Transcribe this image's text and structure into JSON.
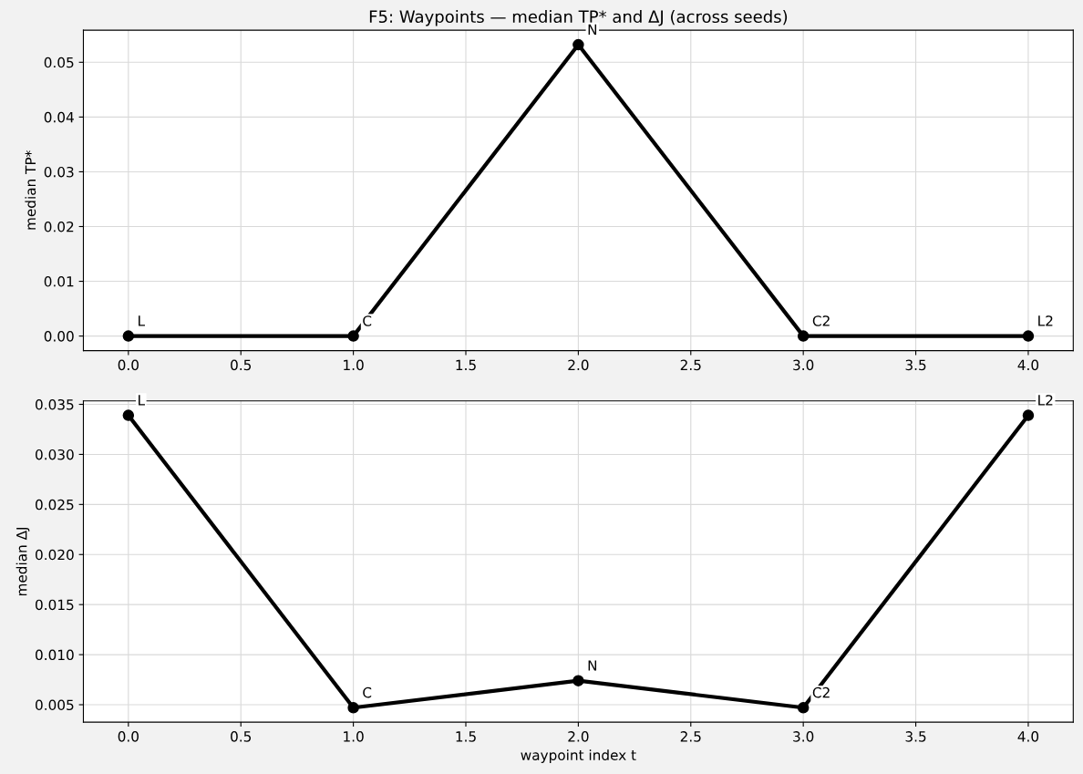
{
  "chart_data": [
    {
      "type": "line",
      "title": "F5: Waypoints — median TP* and ΔJ (across seeds)",
      "ylabel": "median TP*",
      "x": [
        0,
        1,
        2,
        3,
        4
      ],
      "series": [
        {
          "color": "#000000",
          "values": [
            0,
            0,
            0.0532,
            0,
            0
          ]
        }
      ],
      "annotations": [
        {
          "text": "L",
          "x": 0,
          "y": 0
        },
        {
          "text": "C",
          "x": 1,
          "y": 0
        },
        {
          "text": "N",
          "x": 2,
          "y": 0.0532
        },
        {
          "text": "C2",
          "x": 3,
          "y": 0
        },
        {
          "text": "L2",
          "x": 4,
          "y": 0
        }
      ],
      "xlim": [
        -0.2,
        4.2
      ],
      "xticks": [
        {
          "value": 0,
          "label": "0.0"
        },
        {
          "value": 0.5,
          "label": "0.5"
        },
        {
          "value": 1,
          "label": "1.0"
        },
        {
          "value": 1.5,
          "label": "1.5"
        },
        {
          "value": 2,
          "label": "2.0"
        },
        {
          "value": 2.5,
          "label": "2.5"
        },
        {
          "value": 3,
          "label": "3.0"
        },
        {
          "value": 3.5,
          "label": "3.5"
        },
        {
          "value": 4,
          "label": "4.0"
        }
      ],
      "ylim": [
        -0.00266,
        0.05586
      ],
      "yticks": [
        {
          "value": 0,
          "label": "0.00"
        },
        {
          "value": 0.01,
          "label": "0.01"
        },
        {
          "value": 0.02,
          "label": "0.02"
        },
        {
          "value": 0.03,
          "label": "0.03"
        },
        {
          "value": 0.04,
          "label": "0.04"
        },
        {
          "value": 0.05,
          "label": "0.05"
        }
      ],
      "grid": true,
      "marker": "circle",
      "line_style": "solid"
    },
    {
      "type": "line",
      "xlabel": "waypoint index t",
      "ylabel": "median ΔJ",
      "x": [
        0,
        1,
        2,
        3,
        4
      ],
      "series": [
        {
          "color": "#000000",
          "values": [
            0.0339,
            0.0047,
            0.0074,
            0.0047,
            0.0339
          ]
        }
      ],
      "annotations": [
        {
          "text": "L",
          "x": 0,
          "y": 0.0339
        },
        {
          "text": "C",
          "x": 1,
          "y": 0.0047
        },
        {
          "text": "N",
          "x": 2,
          "y": 0.0074
        },
        {
          "text": "C2",
          "x": 3,
          "y": 0.0047
        },
        {
          "text": "L2",
          "x": 4,
          "y": 0.0339
        }
      ],
      "xlim": [
        -0.2,
        4.2
      ],
      "xticks": [
        {
          "value": 0,
          "label": "0.0"
        },
        {
          "value": 0.5,
          "label": "0.5"
        },
        {
          "value": 1,
          "label": "1.0"
        },
        {
          "value": 1.5,
          "label": "1.5"
        },
        {
          "value": 2,
          "label": "2.0"
        },
        {
          "value": 2.5,
          "label": "2.5"
        },
        {
          "value": 3,
          "label": "3.0"
        },
        {
          "value": 3.5,
          "label": "3.5"
        },
        {
          "value": 4,
          "label": "4.0"
        }
      ],
      "ylim": [
        0.00326,
        0.03534
      ],
      "yticks": [
        {
          "value": 0.005,
          "label": "0.005"
        },
        {
          "value": 0.01,
          "label": "0.010"
        },
        {
          "value": 0.015,
          "label": "0.015"
        },
        {
          "value": 0.02,
          "label": "0.020"
        },
        {
          "value": 0.025,
          "label": "0.025"
        },
        {
          "value": 0.03,
          "label": "0.030"
        },
        {
          "value": 0.035,
          "label": "0.035"
        }
      ],
      "grid": true,
      "marker": "circle",
      "line_style": "solid"
    }
  ]
}
